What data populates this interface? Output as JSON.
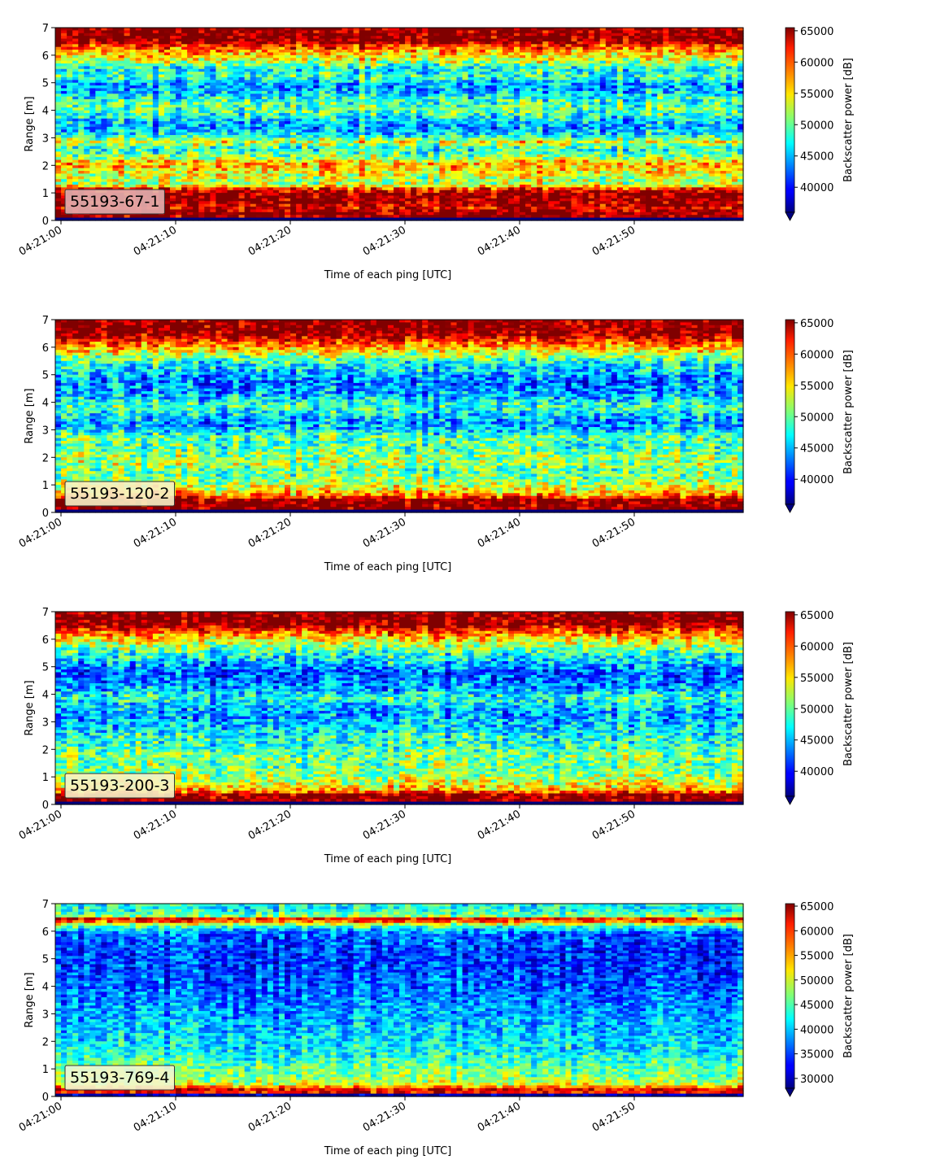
{
  "chart_data": [
    {
      "type": "heatmap",
      "panel_label": "55193-67-1",
      "panel_label_color": "#e3b0b0",
      "xlabel": "Time of each ping [UTC]",
      "ylabel": "Range [m]",
      "xticks": [
        "04:21:00",
        "04:21:10",
        "04:21:20",
        "04:21:30",
        "04:21:40",
        "04:21:50"
      ],
      "x_seconds_range": [
        0,
        59.5
      ],
      "yticks": [
        0,
        1,
        2,
        3,
        4,
        5,
        6,
        7
      ],
      "ylim": [
        0,
        7
      ],
      "colorbar_label": "Backscatter power [dB]",
      "colorbar_ticks": [
        40000,
        45000,
        50000,
        55000,
        60000,
        65000
      ],
      "colorbar_range": [
        36000,
        65500
      ],
      "colorbar_extend": "min",
      "colormap": "jet",
      "profile": [
        [
          0.0,
          0.0
        ],
        [
          0.15,
          65500
        ],
        [
          0.3,
          65500
        ],
        [
          0.45,
          63000
        ],
        [
          0.6,
          64500
        ],
        [
          0.8,
          65500
        ],
        [
          1.0,
          65000
        ],
        [
          1.15,
          61000
        ],
        [
          1.3,
          52000
        ],
        [
          1.6,
          53000
        ],
        [
          1.9,
          56000
        ],
        [
          2.1,
          57000
        ],
        [
          2.3,
          51000
        ],
        [
          2.6,
          48000
        ],
        [
          2.85,
          54000
        ],
        [
          3.1,
          47000
        ],
        [
          3.4,
          44000
        ],
        [
          3.7,
          47000
        ],
        [
          4.0,
          50000
        ],
        [
          4.3,
          49000
        ],
        [
          4.6,
          46000
        ],
        [
          4.9,
          44000
        ],
        [
          5.2,
          49000
        ],
        [
          5.5,
          47000
        ],
        [
          5.8,
          53000
        ],
        [
          6.1,
          57000
        ],
        [
          6.35,
          61000
        ],
        [
          6.5,
          65500
        ],
        [
          7.0,
          65500
        ]
      ]
    },
    {
      "type": "heatmap",
      "panel_label": "55193-120-2",
      "panel_label_color": "#f6f2c8",
      "xlabel": "Time of each ping [UTC]",
      "ylabel": "Range [m]",
      "xticks": [
        "04:21:00",
        "04:21:10",
        "04:21:20",
        "04:21:30",
        "04:21:40",
        "04:21:50"
      ],
      "x_seconds_range": [
        0,
        59.5
      ],
      "yticks": [
        0,
        1,
        2,
        3,
        4,
        5,
        6,
        7
      ],
      "ylim": [
        0,
        7
      ],
      "colorbar_label": "Backscatter power [dB]",
      "colorbar_ticks": [
        40000,
        45000,
        50000,
        55000,
        60000,
        65000
      ],
      "colorbar_range": [
        36000,
        65500
      ],
      "colorbar_extend": "min",
      "colormap": "jet",
      "profile": [
        [
          0.0,
          0.0
        ],
        [
          0.12,
          65500
        ],
        [
          0.45,
          65500
        ],
        [
          0.6,
          58000
        ],
        [
          0.9,
          54000
        ],
        [
          1.2,
          51000
        ],
        [
          1.5,
          50000
        ],
        [
          1.8,
          52000
        ],
        [
          2.1,
          51000
        ],
        [
          2.4,
          49000
        ],
        [
          2.7,
          50000
        ],
        [
          3.0,
          46000
        ],
        [
          3.3,
          44000
        ],
        [
          3.6,
          47000
        ],
        [
          3.9,
          49000
        ],
        [
          4.2,
          45000
        ],
        [
          4.5,
          44000
        ],
        [
          4.8,
          43000
        ],
        [
          5.1,
          46000
        ],
        [
          5.4,
          47000
        ],
        [
          5.7,
          52000
        ],
        [
          6.0,
          57000
        ],
        [
          6.3,
          62000
        ],
        [
          6.5,
          65500
        ],
        [
          7.0,
          65500
        ]
      ]
    },
    {
      "type": "heatmap",
      "panel_label": "55193-200-3",
      "panel_label_color": "#f6f2c8",
      "xlabel": "Time of each ping [UTC]",
      "ylabel": "Range [m]",
      "xticks": [
        "04:21:00",
        "04:21:10",
        "04:21:20",
        "04:21:30",
        "04:21:40",
        "04:21:50"
      ],
      "x_seconds_range": [
        0,
        59.5
      ],
      "yticks": [
        0,
        1,
        2,
        3,
        4,
        5,
        6,
        7
      ],
      "ylim": [
        0,
        7
      ],
      "colorbar_label": "Backscatter power [dB]",
      "colorbar_ticks": [
        40000,
        45000,
        50000,
        55000,
        60000,
        65000
      ],
      "colorbar_range": [
        36000,
        65500
      ],
      "colorbar_extend": "min",
      "colormap": "jet",
      "profile": [
        [
          0.0,
          0.0
        ],
        [
          0.12,
          65500
        ],
        [
          0.35,
          65000
        ],
        [
          0.5,
          57000
        ],
        [
          0.8,
          53000
        ],
        [
          1.1,
          51000
        ],
        [
          1.4,
          50000
        ],
        [
          1.7,
          51000
        ],
        [
          2.0,
          49000
        ],
        [
          2.3,
          48000
        ],
        [
          2.6,
          47000
        ],
        [
          3.0,
          45000
        ],
        [
          3.3,
          44000
        ],
        [
          3.6,
          46000
        ],
        [
          3.9,
          48000
        ],
        [
          4.2,
          44000
        ],
        [
          4.5,
          43000
        ],
        [
          4.8,
          42000
        ],
        [
          5.1,
          45000
        ],
        [
          5.4,
          47000
        ],
        [
          5.7,
          51000
        ],
        [
          6.0,
          55000
        ],
        [
          6.3,
          60000
        ],
        [
          6.55,
          65500
        ],
        [
          7.0,
          65500
        ]
      ]
    },
    {
      "type": "heatmap",
      "panel_label": "55193-769-4",
      "panel_label_color": "#f3f6d0",
      "xlabel": "Time of each ping [UTC]",
      "ylabel": "Range [m]",
      "xticks": [
        "04:21:00",
        "04:21:10",
        "04:21:20",
        "04:21:30",
        "04:21:40",
        "04:21:50"
      ],
      "x_seconds_range": [
        0,
        59.5
      ],
      "yticks": [
        0,
        1,
        2,
        3,
        4,
        5,
        6,
        7
      ],
      "ylim": [
        0,
        7
      ],
      "colorbar_label": "Backscatter power [dB]",
      "colorbar_ticks": [
        30000,
        35000,
        40000,
        45000,
        50000,
        55000,
        60000,
        65000
      ],
      "colorbar_range": [
        28000,
        65500
      ],
      "colorbar_extend": "min",
      "colormap": "jet",
      "profile": [
        [
          0.0,
          0.0
        ],
        [
          0.1,
          57000
        ],
        [
          0.2,
          64000
        ],
        [
          0.3,
          58000
        ],
        [
          0.45,
          50000
        ],
        [
          0.7,
          47000
        ],
        [
          1.0,
          46000
        ],
        [
          1.3,
          44000
        ],
        [
          1.6,
          42000
        ],
        [
          2.0,
          41000
        ],
        [
          2.4,
          40000
        ],
        [
          2.8,
          39000
        ],
        [
          3.2,
          38000
        ],
        [
          3.6,
          37000
        ],
        [
          4.0,
          36000
        ],
        [
          4.5,
          35000
        ],
        [
          5.0,
          34500
        ],
        [
          5.5,
          35000
        ],
        [
          5.9,
          36000
        ],
        [
          6.1,
          41000
        ],
        [
          6.3,
          52000
        ],
        [
          6.42,
          64000
        ],
        [
          6.55,
          47000
        ],
        [
          6.8,
          42000
        ],
        [
          7.0,
          43000
        ]
      ]
    }
  ]
}
